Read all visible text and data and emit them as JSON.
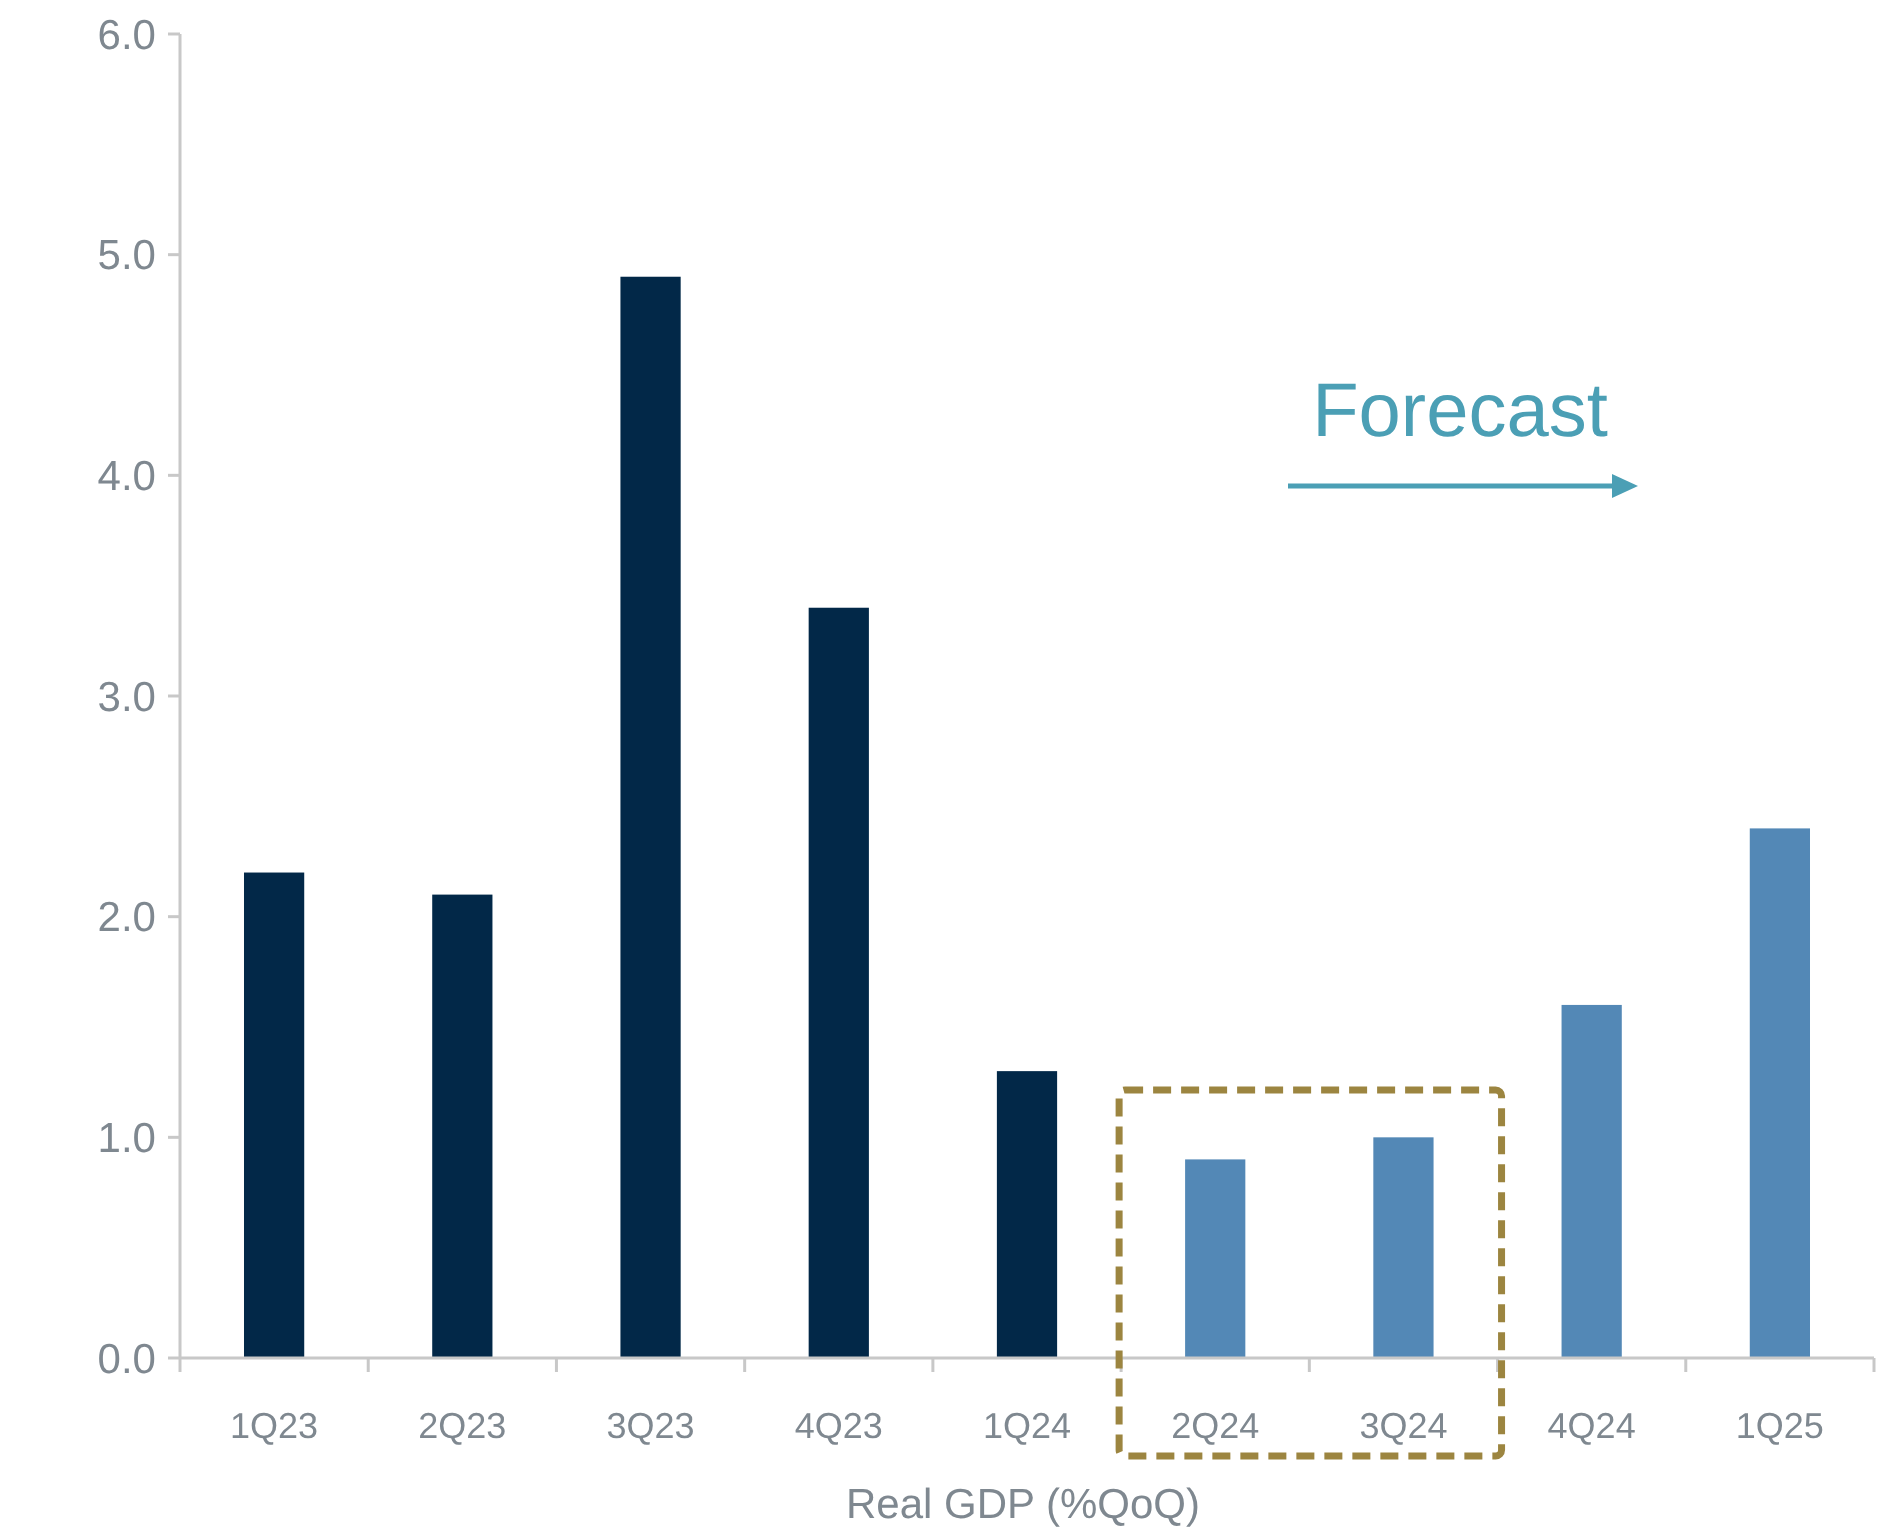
{
  "chart_data": {
    "type": "bar",
    "xlabel": "Real GDP (%QoQ)",
    "categories": [
      "1Q23",
      "2Q23",
      "3Q23",
      "4Q23",
      "1Q24",
      "2Q24",
      "3Q24",
      "4Q24",
      "1Q25"
    ],
    "values": [
      2.2,
      2.1,
      4.9,
      3.4,
      1.3,
      0.9,
      1.0,
      1.6,
      2.4
    ],
    "colors": [
      "#022848",
      "#022848",
      "#022848",
      "#022848",
      "#022848",
      "#5388b6",
      "#5388b6",
      "#5388b6",
      "#5388b6"
    ],
    "ylim": [
      0,
      6
    ],
    "yticks": [
      {
        "value": 0,
        "label": "0.0"
      },
      {
        "value": 1,
        "label": "1.0"
      },
      {
        "value": 2,
        "label": "2.0"
      },
      {
        "value": 3,
        "label": "3.0"
      },
      {
        "value": 4,
        "label": "4.0"
      },
      {
        "value": 5,
        "label": "5.0"
      },
      {
        "value": 6,
        "label": "6.0"
      }
    ],
    "annotations": [
      "Forecast"
    ],
    "grid": false
  }
}
